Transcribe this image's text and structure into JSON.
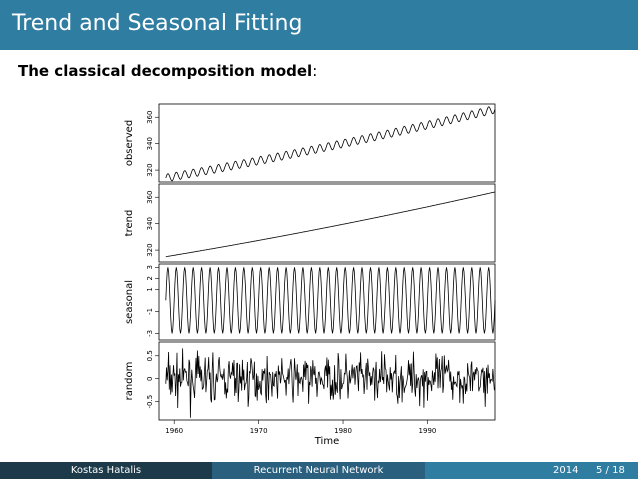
{
  "slide": {
    "title": "Trend and Seasonal Fitting",
    "subtitle_bold": "The classical decomposition model",
    "subtitle_rest": ":"
  },
  "footer": {
    "author": "Kostas Hatalis",
    "talk_title": "Recurrent Neural Network",
    "year": "2014",
    "page": "5 / 18"
  },
  "chart_data": {
    "type": "line",
    "xlabel": "Time",
    "x_range": [
      1958.2,
      1998.0
    ],
    "x_ticks": [
      1960,
      1970,
      1980,
      1990
    ],
    "panels": [
      {
        "ylabel": "observed",
        "y_ticks": [
          320,
          340,
          360
        ],
        "ylim": [
          311,
          370
        ],
        "start": 314,
        "end": 366,
        "seasonal_amplitude": 3.0
      },
      {
        "ylabel": "trend",
        "y_ticks": [
          320,
          340,
          360
        ],
        "ylim": [
          311,
          370
        ],
        "start": 315,
        "end": 364
      },
      {
        "ylabel": "seasonal",
        "y_ticks": [
          -3,
          -1,
          1,
          2,
          3
        ],
        "ylim": [
          -3.6,
          3.3
        ],
        "amplitude": 3.0
      },
      {
        "ylabel": "random",
        "y_ticks": [
          -0.5,
          0.0,
          0.5
        ],
        "ylim": [
          -0.9,
          0.8
        ],
        "noise_sd": 0.22
      }
    ]
  }
}
